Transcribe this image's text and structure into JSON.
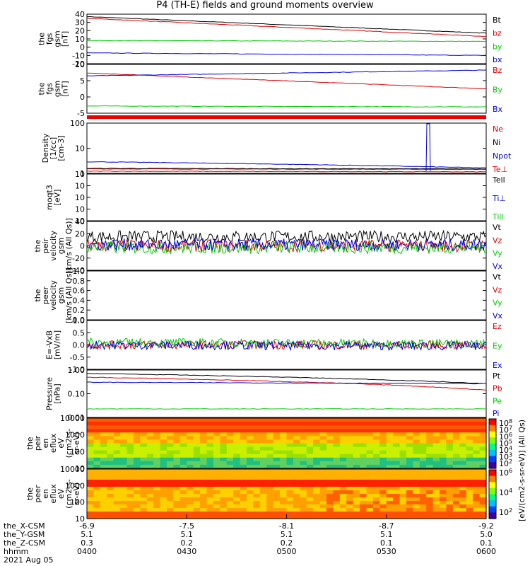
{
  "title": "P4 (TH-E) fields and ground moments overview",
  "colors": {
    "black": "#000000",
    "red": "#dd0000",
    "green": "#00cc00",
    "blue": "#0000dd"
  },
  "chart_data": [
    {
      "type": "line",
      "id": "fgs",
      "ylabel": [
        "the",
        "fgs",
        "gsm",
        "[nT]"
      ],
      "ylim": [
        -20,
        40
      ],
      "ticks": [
        "40",
        "30",
        "20",
        "10",
        "0",
        "-10",
        "-20"
      ],
      "series": [
        {
          "name": "Bt",
          "color": "black",
          "start": 37,
          "end": 17
        },
        {
          "name": "bz",
          "color": "red",
          "start": 35,
          "end": 13
        },
        {
          "name": "by",
          "color": "green",
          "start": 8,
          "end": 7
        },
        {
          "name": "bx",
          "color": "blue",
          "start": -7,
          "end": -10
        }
      ]
    },
    {
      "type": "line",
      "id": "fgm",
      "ylabel": [
        "the",
        "fgs",
        "gsm",
        "[nT]"
      ],
      "ylim": [
        -7,
        10
      ],
      "ticks": [
        "10",
        "5",
        "0",
        "-5"
      ],
      "series": [
        {
          "name": "Bz",
          "color": "red",
          "start": 7,
          "end": 1.5
        },
        {
          "name": "By",
          "color": "green",
          "start": -4.5,
          "end": -4.8
        },
        {
          "name": "Bx",
          "color": "blue",
          "start": 6,
          "end": 8
        }
      ]
    },
    {
      "type": "line",
      "id": "density",
      "ylabel": [
        "Density",
        "[1/cc]",
        "[cm-3]"
      ],
      "scale": "log",
      "ylim": [
        0.5,
        200
      ],
      "ticks": [
        "100",
        "10",
        "1"
      ],
      "series": [
        {
          "name": "Ne",
          "color": "red",
          "start": 0.85,
          "end": 0.8
        },
        {
          "name": "Ni",
          "color": "black",
          "start": 0.9,
          "end": 0.85
        },
        {
          "name": "Npot",
          "color": "blue",
          "start": 2.0,
          "end": 0.95
        },
        {
          "name": "Te⊥",
          "color": "red",
          "start": 0.65,
          "end": 0.6
        }
      ]
    },
    {
      "type": "line",
      "id": "moqt3",
      "ylabel": [
        "moqt3",
        "[eV]"
      ],
      "scale": "log",
      "ylim": [
        0.1,
        100
      ],
      "ticks": [
        "10",
        "10",
        "10",
        "10",
        "10"
      ],
      "series": [
        {
          "name": "Tell",
          "color": "black"
        },
        {
          "name": "Ti⊥",
          "color": "blue"
        },
        {
          "name": "Till",
          "color": "green"
        }
      ]
    },
    {
      "type": "line",
      "id": "peir_v",
      "ylabel": [
        "the",
        "peir",
        "velocity",
        "gsm",
        "[km/s (All Qs)]"
      ],
      "ylim": [
        -40,
        40
      ],
      "ticks": [
        "40",
        "20",
        "0",
        "-20",
        "-40"
      ],
      "series": [
        {
          "name": "Vt",
          "color": "black",
          "start": 15,
          "end": 15
        },
        {
          "name": "Vz",
          "color": "red",
          "start": 0,
          "end": 0
        },
        {
          "name": "Vy",
          "color": "green",
          "start": -3,
          "end": -3
        },
        {
          "name": "Vx",
          "color": "blue",
          "start": 2,
          "end": 2
        }
      ]
    },
    {
      "type": "line",
      "id": "peer_v",
      "ylabel": [
        "the",
        "peer",
        "velocity",
        "gsm",
        "[km/s (All Qs)]"
      ],
      "ylim": [
        0,
        1
      ],
      "ticks": [
        "1.0",
        "0.8",
        "0.6",
        "0.4",
        "0.2",
        "0.0"
      ],
      "series": [
        {
          "name": "Vt",
          "color": "black"
        },
        {
          "name": "Vz",
          "color": "red"
        },
        {
          "name": "Vy",
          "color": "green"
        },
        {
          "name": "Vx",
          "color": "blue"
        }
      ]
    },
    {
      "type": "line",
      "id": "efield",
      "ylabel": [
        "E=-VxB",
        "[mV/m]"
      ],
      "ylim": [
        -1,
        1
      ],
      "ticks": [
        "1.0",
        "0.5",
        "0.0",
        "-0.5",
        "-1.0"
      ],
      "series": [
        {
          "name": "Ez",
          "color": "red",
          "start": 0,
          "end": 0
        },
        {
          "name": "Ey",
          "color": "green",
          "start": 0.1,
          "end": 0.05
        },
        {
          "name": "Ex",
          "color": "blue",
          "start": 0,
          "end": -0.05
        }
      ]
    },
    {
      "type": "line",
      "id": "pressure",
      "ylabel": [
        "Pressure",
        "[nPa]"
      ],
      "scale": "log",
      "ylim": [
        0.008,
        1.3
      ],
      "ticks": [
        "1.00",
        "0.10",
        "0.01"
      ],
      "series": [
        {
          "name": "Pt",
          "color": "black",
          "start": 0.9,
          "end": 0.3
        },
        {
          "name": "Pb",
          "color": "red",
          "start": 0.6,
          "end": 0.15
        },
        {
          "name": "Pe",
          "color": "green",
          "start": 0.02,
          "end": 0.02
        },
        {
          "name": "Pi",
          "color": "blue",
          "start": 0.35,
          "end": 0.3
        }
      ]
    },
    {
      "type": "heatmap",
      "id": "peir_en",
      "ylabel": [
        "the",
        "peir",
        "en",
        "eflux",
        "eV",
        "(cm2-s-",
        "sr-eV)"
      ],
      "ticks": [
        "10000",
        "1000",
        "100",
        "10"
      ]
    },
    {
      "type": "heatmap",
      "id": "peer_en",
      "ylabel": [
        "the",
        "peer",
        "en",
        "eflux",
        "eV",
        "(cm2-s-",
        "sr-eV)"
      ],
      "ticks": [
        "10000",
        "1000",
        "100",
        "10"
      ]
    }
  ],
  "colorbar": {
    "label": "[eV/(cm2-s-sr-eV)] (All Qs)",
    "ticks": [
      "10",
      "10",
      "10",
      "10",
      "10",
      "10",
      "10"
    ],
    "exponents": [
      "8",
      "7",
      "6",
      "5",
      "4",
      "3",
      "2"
    ],
    "lower_ticks": [
      "10",
      "10",
      "10"
    ],
    "lower_exponents": [
      "6",
      "4",
      "2"
    ]
  },
  "xaxis": {
    "ticks": [
      "0400",
      "0430",
      "0500",
      "0530",
      "0600"
    ],
    "rows": [
      {
        "label": "the_X-CSM",
        "values": [
          "-6.9",
          "-7.5",
          "-8.1",
          "-8.7",
          "-9.2"
        ]
      },
      {
        "label": "the_Y-GSM",
        "values": [
          "5.1",
          "5.1",
          "5.1",
          "5.1",
          "5.0"
        ]
      },
      {
        "label": "the_Z-CSM",
        "values": [
          "0.3",
          "0.2",
          "0.2",
          "0.1",
          "0.1"
        ]
      },
      {
        "label": "hhmm",
        "values": [
          "0400",
          "0430",
          "0500",
          "0530",
          "0600"
        ]
      }
    ],
    "date": "2021 Aug 05"
  }
}
